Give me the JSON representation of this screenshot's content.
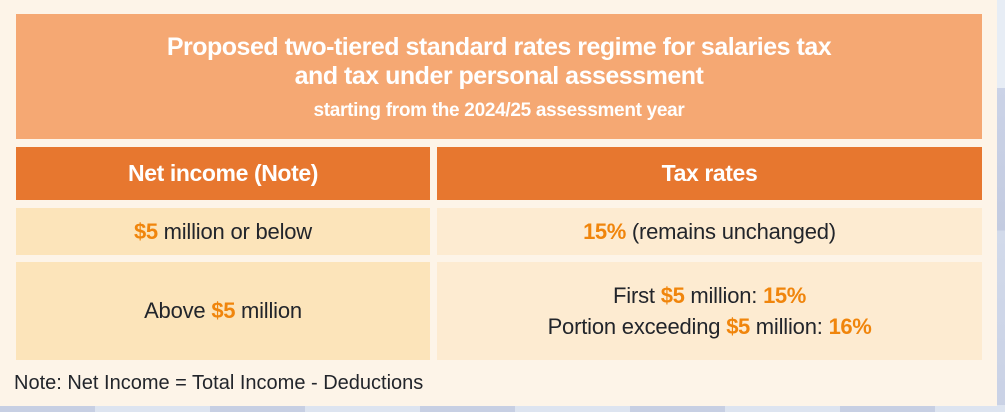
{
  "page": {
    "card_background": "#fdf4e8",
    "outer_pattern_blue": "#c7cfe3",
    "outer_pattern_blue_light": "#dde4f0"
  },
  "header": {
    "title_line1": "Proposed two-tiered standard rates regime for salaries tax",
    "title_line2": "and tax under personal assessment",
    "subtitle": "starting from the 2024/25 assessment year",
    "background_color": "#f5a873",
    "text_color": "#ffffff"
  },
  "table": {
    "accent_color": "#f0850c",
    "header_background": "#e7772f",
    "left_cell_background": "#fce4ba",
    "right_cell_background": "#fdebd1",
    "columns": {
      "net_income": "Net income (Note)",
      "tax_rates": "Tax rates"
    },
    "rows": [
      {
        "net_income": {
          "prefix": "",
          "amount": "$5",
          "suffix": " million or below"
        },
        "tax_rate": {
          "rate": "15%",
          "suffix": " (remains unchanged)"
        }
      },
      {
        "net_income": {
          "prefix": "Above ",
          "amount": "$5",
          "suffix": " million"
        },
        "tax_rate_lines": [
          {
            "prefix": "First ",
            "amount": "$5",
            "mid": " million: ",
            "rate": "15%"
          },
          {
            "prefix": "Portion exceeding ",
            "amount": "$5",
            "mid": " million: ",
            "rate": "16%"
          }
        ]
      }
    ]
  },
  "note": {
    "text": "Note: Net Income = Total Income - Deductions"
  }
}
